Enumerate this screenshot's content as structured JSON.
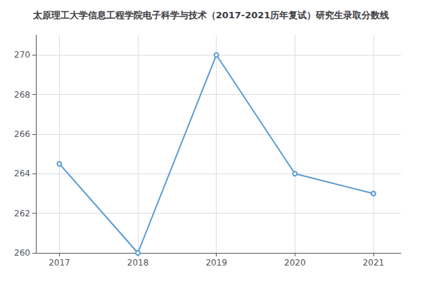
{
  "chart_data": {
    "type": "line",
    "title": "太原理工大学信息工程学院电子科学与技术（2017-2021历年复试）研究生录取分数线",
    "x": [
      2017,
      2018,
      2019,
      2020,
      2021
    ],
    "values": [
      264.5,
      260,
      270,
      264,
      263
    ],
    "color": "#5b9bd5",
    "xlim": [
      2016.7,
      2021.35
    ],
    "xticks": [
      2017,
      2018,
      2019,
      2020,
      2021
    ],
    "ylim": [
      260,
      271
    ],
    "yticks": [
      260,
      262,
      264,
      266,
      268,
      270
    ],
    "grid": true
  }
}
